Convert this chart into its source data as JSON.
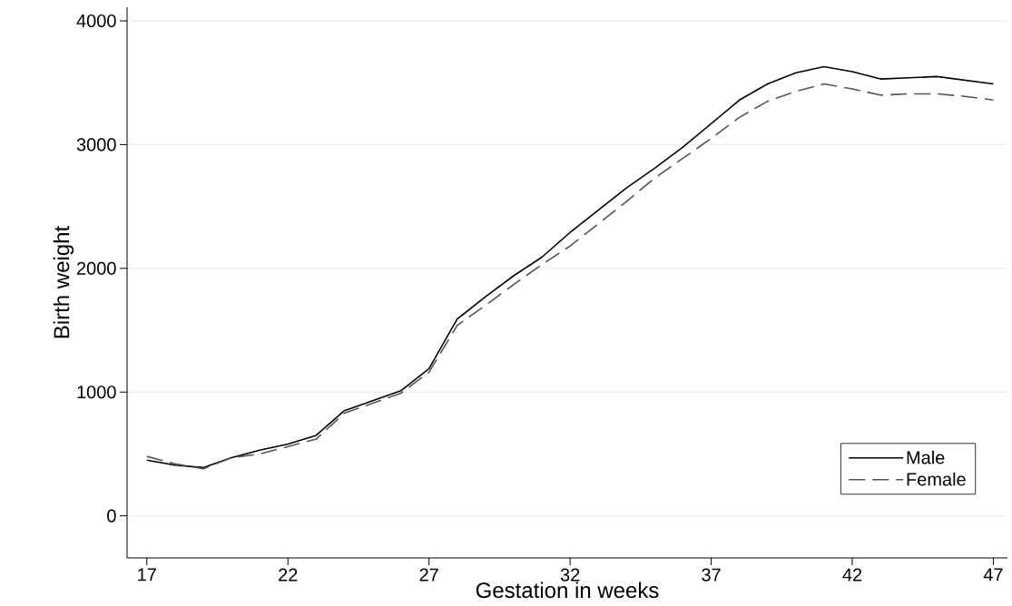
{
  "chart_data": {
    "type": "line",
    "xlabel": "Gestation in weeks",
    "ylabel": "Birth weight",
    "x": [
      17,
      18,
      19,
      20,
      21,
      22,
      23,
      24,
      25,
      26,
      27,
      28,
      29,
      30,
      31,
      32,
      33,
      34,
      35,
      36,
      37,
      38,
      39,
      40,
      41,
      42,
      43,
      44,
      45,
      46,
      47
    ],
    "series": [
      {
        "name": "Male",
        "color": "#000000",
        "line_style": "solid",
        "values": [
          450,
          410,
          390,
          470,
          530,
          580,
          650,
          850,
          930,
          1010,
          1190,
          1590,
          1770,
          1940,
          2090,
          2290,
          2470,
          2650,
          2810,
          2980,
          3170,
          3360,
          3490,
          3580,
          3630,
          3590,
          3530,
          3540,
          3550,
          3520,
          3490
        ]
      },
      {
        "name": "Female",
        "color": "#555555",
        "line_style": "dashed",
        "values": [
          480,
          420,
          380,
          470,
          500,
          560,
          620,
          830,
          910,
          990,
          1160,
          1540,
          1700,
          1870,
          2030,
          2180,
          2360,
          2540,
          2730,
          2890,
          3050,
          3220,
          3350,
          3430,
          3490,
          3450,
          3400,
          3410,
          3410,
          3390,
          3360
        ]
      }
    ],
    "xlim": [
      16.3,
      47.5
    ],
    "ylim": [
      -340,
      4110
    ],
    "xticks": [
      17,
      22,
      27,
      32,
      37,
      42,
      47
    ],
    "yticks": [
      0,
      1000,
      2000,
      3000,
      4000
    ],
    "grid": "y",
    "legend": "bottom right",
    "marker": "none"
  }
}
